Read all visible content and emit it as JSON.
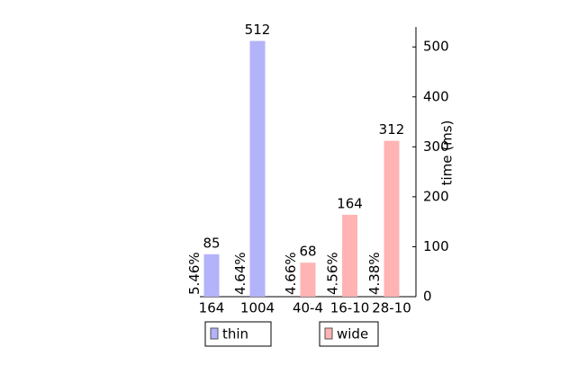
{
  "chart_data": {
    "type": "bar",
    "y_label": "time (ms)",
    "ylim": [
      0,
      540
    ],
    "yticks": [
      0,
      100,
      200,
      300,
      400,
      500
    ],
    "series": [
      {
        "name": "thin",
        "color": "#b3b3fa",
        "categories": [
          "164",
          "1004"
        ],
        "values": [
          85,
          512
        ],
        "annotations": [
          "5.46%",
          "4.64%"
        ]
      },
      {
        "name": "wide",
        "color": "#ffb3b3",
        "categories": [
          "40-4",
          "16-10",
          "28-10"
        ],
        "values": [
          68,
          164,
          312
        ],
        "annotations": [
          "4.66%",
          "4.56%",
          "4.38%"
        ]
      }
    ]
  }
}
